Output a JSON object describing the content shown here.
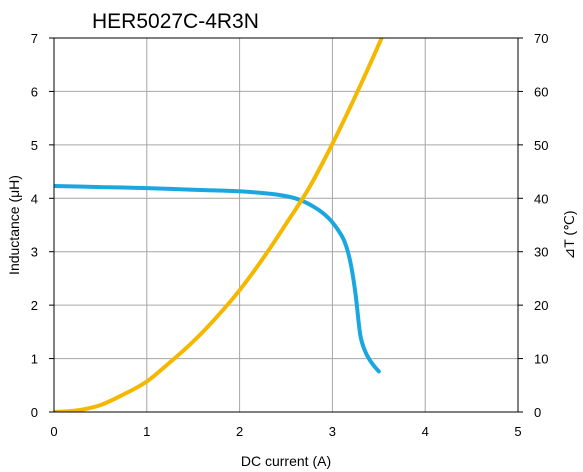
{
  "chart_data": {
    "type": "line",
    "title": "HER5027C-4R3N",
    "xlabel": "DC current (A)",
    "ylabel": "Inductance (μH)",
    "y2label": "⊿T (℃)",
    "xlim": [
      0,
      5
    ],
    "ylim": [
      0,
      7
    ],
    "y2lim": [
      0,
      70
    ],
    "x_ticks": [
      "0",
      "1",
      "2",
      "3",
      "4",
      "5"
    ],
    "y_ticks": [
      "0",
      "1",
      "2",
      "3",
      "4",
      "5",
      "6",
      "7"
    ],
    "y2_ticks": [
      "0",
      "10",
      "20",
      "30",
      "40",
      "50",
      "60",
      "70"
    ],
    "grid": true,
    "series": [
      {
        "axis": "left",
        "color": "#1aa7e0",
        "x": [
          0,
          0.5,
          1.0,
          1.5,
          2.0,
          2.3,
          2.5,
          2.65,
          2.8,
          2.9,
          3.0,
          3.1,
          3.15,
          3.2,
          3.25,
          3.3,
          3.35,
          3.4,
          3.45,
          3.5
        ],
        "values": [
          4.23,
          4.21,
          4.19,
          4.16,
          4.13,
          4.09,
          4.04,
          3.97,
          3.84,
          3.72,
          3.55,
          3.3,
          3.1,
          2.75,
          2.2,
          1.45,
          1.15,
          0.98,
          0.86,
          0.76
        ]
      },
      {
        "axis": "right",
        "color": "#f5b800",
        "x": [
          0,
          0.25,
          0.5,
          0.75,
          1.0,
          1.25,
          1.5,
          1.75,
          2.0,
          2.25,
          2.5,
          2.75,
          3.0,
          3.25,
          3.5,
          3.75
        ],
        "values": [
          0,
          0.3,
          1.3,
          3.3,
          5.7,
          9.3,
          13.2,
          17.7,
          22.8,
          28.7,
          35.2,
          42.0,
          50.2,
          59.2,
          68.8,
          79.0
        ]
      }
    ]
  }
}
